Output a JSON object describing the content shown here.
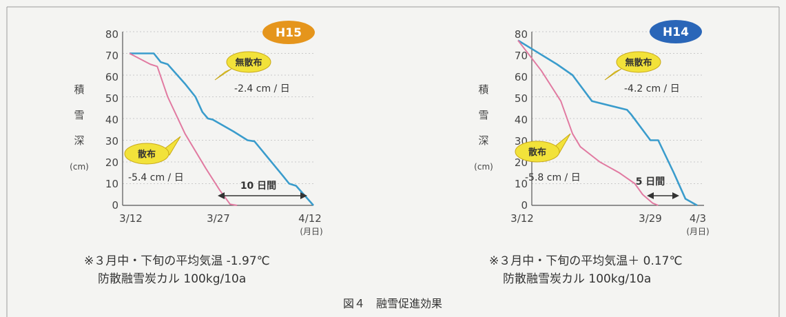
{
  "caption": "図４　融雪促進効果",
  "chart_data": [
    {
      "type": "line",
      "badge": "H15",
      "badge_color": "#e5951c",
      "ylabel": "積雪深",
      "yunit": "(cm)",
      "ylim": [
        0,
        80
      ],
      "yticks": [
        "0",
        "10",
        "20",
        "30",
        "40",
        "50",
        "60",
        "70",
        "80"
      ],
      "xticks": [
        "3/12",
        "3/27",
        "4/12"
      ],
      "xunit": "(月日)",
      "series": [
        {
          "name": "無散布",
          "color": "#3a9ccc",
          "rate": "-2.4 cm / 日",
          "points": [
            [
              0,
              70
            ],
            [
              3.5,
              70
            ],
            [
              4.5,
              66
            ],
            [
              5.5,
              65
            ],
            [
              8,
              56
            ],
            [
              9.5,
              50
            ],
            [
              10.5,
              43
            ],
            [
              11.3,
              40
            ],
            [
              12,
              39.5
            ],
            [
              15,
              34
            ],
            [
              17,
              30
            ],
            [
              18,
              29.5
            ],
            [
              22,
              14
            ],
            [
              23,
              10
            ],
            [
              24,
              9
            ],
            [
              26.5,
              0
            ]
          ]
        },
        {
          "name": "散布",
          "color": "#e17aa1",
          "rate": "-5.4 cm / 日",
          "points": [
            [
              0,
              70
            ],
            [
              3,
              65
            ],
            [
              4,
              64
            ],
            [
              5.5,
              50
            ],
            [
              8,
              33
            ],
            [
              11,
              17
            ],
            [
              13,
              7
            ],
            [
              14.5,
              0.5
            ],
            [
              15.5,
              0
            ]
          ]
        }
      ],
      "interval": "10 日間",
      "note": "※３月中・下旬の平均気温 -1.97℃",
      "note2": "防散融雪炭カル 100kg/10a"
    },
    {
      "type": "line",
      "badge": "H14",
      "badge_color": "#2a66b8",
      "ylabel": "積雪深",
      "yunit": "(cm)",
      "ylim": [
        0,
        80
      ],
      "yticks": [
        "0",
        "10",
        "20",
        "30",
        "40",
        "50",
        "60",
        "70",
        "80"
      ],
      "xticks": [
        "3/12",
        "3/29",
        "4/3"
      ],
      "xunit": "(月日)",
      "series": [
        {
          "name": "無散布",
          "color": "#3a9ccc",
          "rate": "-4.2 cm / 日",
          "points": [
            [
              0,
              76
            ],
            [
              5,
              65
            ],
            [
              7,
              60
            ],
            [
              9.5,
              48
            ],
            [
              14,
              44
            ],
            [
              14.5,
              42
            ],
            [
              17,
              30
            ],
            [
              18,
              30
            ],
            [
              20,
              15
            ],
            [
              21.5,
              3
            ],
            [
              22.5,
              1
            ],
            [
              23,
              0
            ]
          ]
        },
        {
          "name": "散布",
          "color": "#e17aa1",
          "rate": "-5.8 cm / 日",
          "points": [
            [
              0,
              76
            ],
            [
              3,
              62
            ],
            [
              5.5,
              48
            ],
            [
              7,
              33
            ],
            [
              8,
              27
            ],
            [
              10.5,
              20
            ],
            [
              13,
              15
            ],
            [
              15,
              10
            ],
            [
              16,
              5
            ],
            [
              17.3,
              1
            ],
            [
              18,
              0
            ]
          ]
        }
      ],
      "interval": "5 日間",
      "note": "※３月中・下旬の平均気温＋ 0.17℃",
      "note2": "防散融雪炭カル 100kg/10a"
    }
  ]
}
